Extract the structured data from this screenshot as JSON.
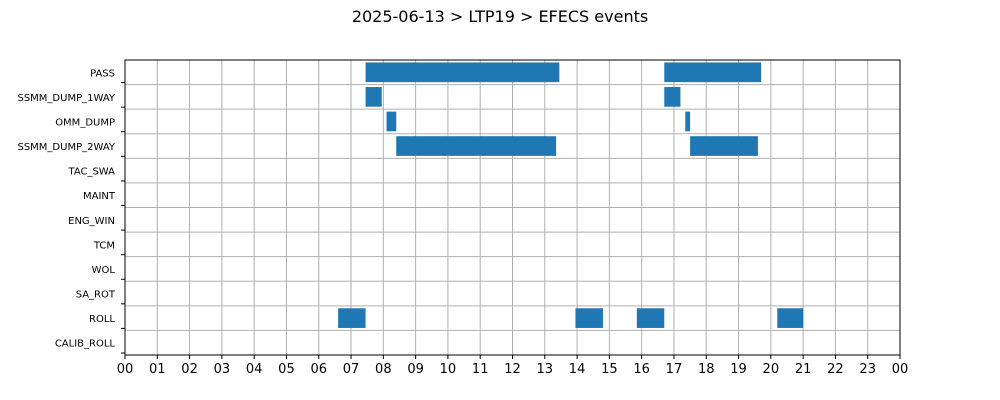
{
  "chart_data": {
    "type": "bar",
    "orientation": "horizontal-timeline",
    "title": "2025-06-13 > LTP19 > EFECS events",
    "xlabel": "",
    "ylabel": "",
    "xlim": [
      0,
      24
    ],
    "x_tick_labels": [
      "00",
      "01",
      "02",
      "03",
      "04",
      "05",
      "06",
      "07",
      "08",
      "09",
      "10",
      "11",
      "12",
      "13",
      "14",
      "15",
      "16",
      "17",
      "18",
      "19",
      "20",
      "21",
      "22",
      "23",
      "00"
    ],
    "categories": [
      "PASS",
      "SSMM_DUMP_1WAY",
      "OMM_DUMP",
      "SSMM_DUMP_2WAY",
      "TAC_SWA",
      "MAINT",
      "ENG_WIN",
      "TCM",
      "WOL",
      "SA_ROT",
      "ROLL",
      "CALIB_ROLL"
    ],
    "grid": true,
    "legend": "none",
    "bar_color": "#1f77b4",
    "series": [
      {
        "category": "PASS",
        "intervals": [
          [
            7.45,
            13.45
          ],
          [
            16.7,
            19.7
          ]
        ]
      },
      {
        "category": "SSMM_DUMP_1WAY",
        "intervals": [
          [
            7.45,
            7.95
          ],
          [
            16.7,
            17.2
          ]
        ]
      },
      {
        "category": "OMM_DUMP",
        "intervals": [
          [
            8.1,
            8.4
          ],
          [
            17.35,
            17.5
          ]
        ]
      },
      {
        "category": "SSMM_DUMP_2WAY",
        "intervals": [
          [
            8.4,
            13.35
          ],
          [
            17.5,
            19.6
          ]
        ]
      },
      {
        "category": "TAC_SWA",
        "intervals": []
      },
      {
        "category": "MAINT",
        "intervals": []
      },
      {
        "category": "ENG_WIN",
        "intervals": []
      },
      {
        "category": "TCM",
        "intervals": []
      },
      {
        "category": "WOL",
        "intervals": []
      },
      {
        "category": "SA_ROT",
        "intervals": []
      },
      {
        "category": "ROLL",
        "intervals": [
          [
            6.6,
            7.45
          ],
          [
            13.95,
            14.8
          ],
          [
            15.85,
            16.7
          ],
          [
            20.2,
            21.0
          ]
        ]
      },
      {
        "category": "CALIB_ROLL",
        "intervals": []
      }
    ]
  }
}
